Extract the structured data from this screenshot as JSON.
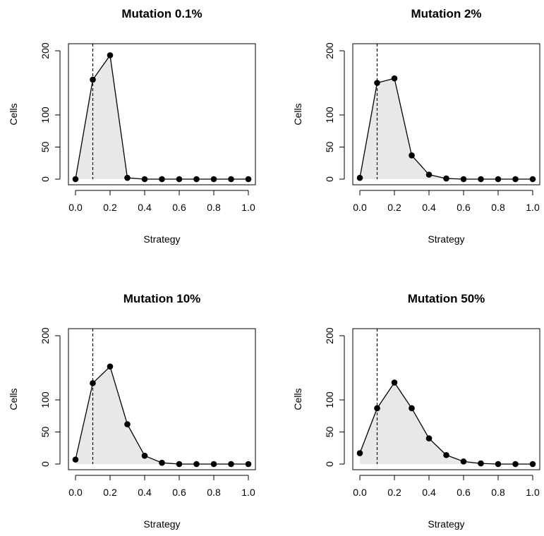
{
  "chart_data": [
    {
      "type": "line",
      "title": "Mutation 0.1%",
      "xlabel": "Strategy",
      "ylabel": "Cells",
      "xlim": [
        0,
        1
      ],
      "ylim": [
        0,
        200
      ],
      "xticks": [
        0,
        0.2,
        0.4,
        0.6,
        0.8,
        1
      ],
      "xtick_labels": [
        "0.0",
        "0.2",
        "0.4",
        "0.6",
        "0.8",
        "1.0"
      ],
      "yticks": [
        0,
        50,
        100,
        200
      ],
      "ytick_labels": [
        "0",
        "50",
        "100",
        "200"
      ],
      "reference_line_x": 0.1,
      "area_filled": true,
      "grid": false,
      "x": [
        0,
        0.1,
        0.2,
        0.3,
        0.4,
        0.5,
        0.6,
        0.7,
        0.8,
        0.9,
        1.0
      ],
      "values": [
        0,
        155,
        193,
        2,
        0,
        0,
        0,
        0,
        0,
        0,
        0
      ]
    },
    {
      "type": "line",
      "title": "Mutation 2%",
      "xlabel": "Strategy",
      "ylabel": "Cells",
      "xlim": [
        0,
        1
      ],
      "ylim": [
        0,
        200
      ],
      "xticks": [
        0,
        0.2,
        0.4,
        0.6,
        0.8,
        1
      ],
      "xtick_labels": [
        "0.0",
        "0.2",
        "0.4",
        "0.6",
        "0.8",
        "1.0"
      ],
      "yticks": [
        0,
        50,
        100,
        200
      ],
      "ytick_labels": [
        "0",
        "50",
        "100",
        "200"
      ],
      "reference_line_x": 0.1,
      "area_filled": true,
      "grid": false,
      "x": [
        0,
        0.1,
        0.2,
        0.3,
        0.4,
        0.5,
        0.6,
        0.7,
        0.8,
        0.9,
        1.0
      ],
      "values": [
        2,
        150,
        157,
        37,
        7,
        1,
        0,
        0,
        0,
        0,
        0
      ]
    },
    {
      "type": "line",
      "title": "Mutation 10%",
      "xlabel": "Strategy",
      "ylabel": "Cells",
      "xlim": [
        0,
        1
      ],
      "ylim": [
        0,
        200
      ],
      "xticks": [
        0,
        0.2,
        0.4,
        0.6,
        0.8,
        1
      ],
      "xtick_labels": [
        "0.0",
        "0.2",
        "0.4",
        "0.6",
        "0.8",
        "1.0"
      ],
      "yticks": [
        0,
        50,
        100,
        200
      ],
      "ytick_labels": [
        "0",
        "50",
        "100",
        "200"
      ],
      "reference_line_x": 0.1,
      "area_filled": true,
      "grid": false,
      "x": [
        0,
        0.1,
        0.2,
        0.3,
        0.4,
        0.5,
        0.6,
        0.7,
        0.8,
        0.9,
        1.0
      ],
      "values": [
        7,
        126,
        152,
        62,
        13,
        2,
        0,
        0,
        0,
        0,
        0
      ]
    },
    {
      "type": "line",
      "title": "Mutation 50%",
      "xlabel": "Strategy",
      "ylabel": "Cells",
      "xlim": [
        0,
        1
      ],
      "ylim": [
        0,
        200
      ],
      "xticks": [
        0,
        0.2,
        0.4,
        0.6,
        0.8,
        1
      ],
      "xtick_labels": [
        "0.0",
        "0.2",
        "0.4",
        "0.6",
        "0.8",
        "1.0"
      ],
      "yticks": [
        0,
        50,
        100,
        200
      ],
      "ytick_labels": [
        "0",
        "50",
        "100",
        "200"
      ],
      "reference_line_x": 0.1,
      "area_filled": true,
      "grid": false,
      "x": [
        0,
        0.1,
        0.2,
        0.3,
        0.4,
        0.5,
        0.6,
        0.7,
        0.8,
        0.9,
        1.0
      ],
      "values": [
        17,
        87,
        127,
        87,
        40,
        14,
        4,
        1,
        0,
        0,
        0
      ]
    }
  ],
  "colors": {
    "fill": "#e8e8e8",
    "line": "#000000",
    "point": "#000000"
  }
}
